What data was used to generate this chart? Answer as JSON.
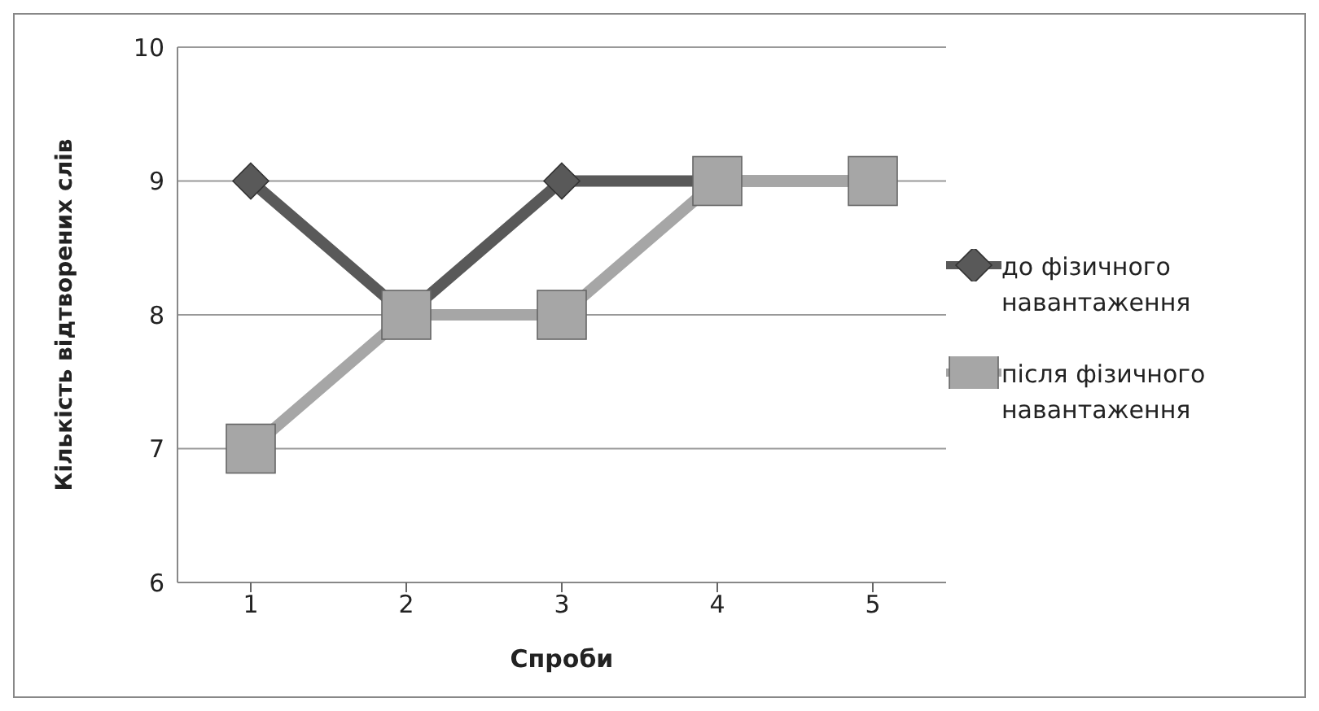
{
  "chart_data": {
    "type": "line",
    "xlabel": "Спроби",
    "ylabel": "Кількість відтворених слів",
    "categories": [
      "1",
      "2",
      "3",
      "4",
      "5"
    ],
    "series": [
      {
        "name": "до фізичного навантаження",
        "color": "#595959",
        "marker": "diamond",
        "values": [
          9,
          8,
          9,
          9,
          9
        ]
      },
      {
        "name": "після фізичного навантаження",
        "color": "#a6a6a6",
        "marker": "square",
        "values": [
          7,
          8,
          8,
          9,
          9
        ]
      }
    ],
    "ylim": [
      6,
      10
    ],
    "yticks": [
      6,
      7,
      8,
      9,
      10
    ],
    "grid": "y",
    "legend": "right"
  }
}
